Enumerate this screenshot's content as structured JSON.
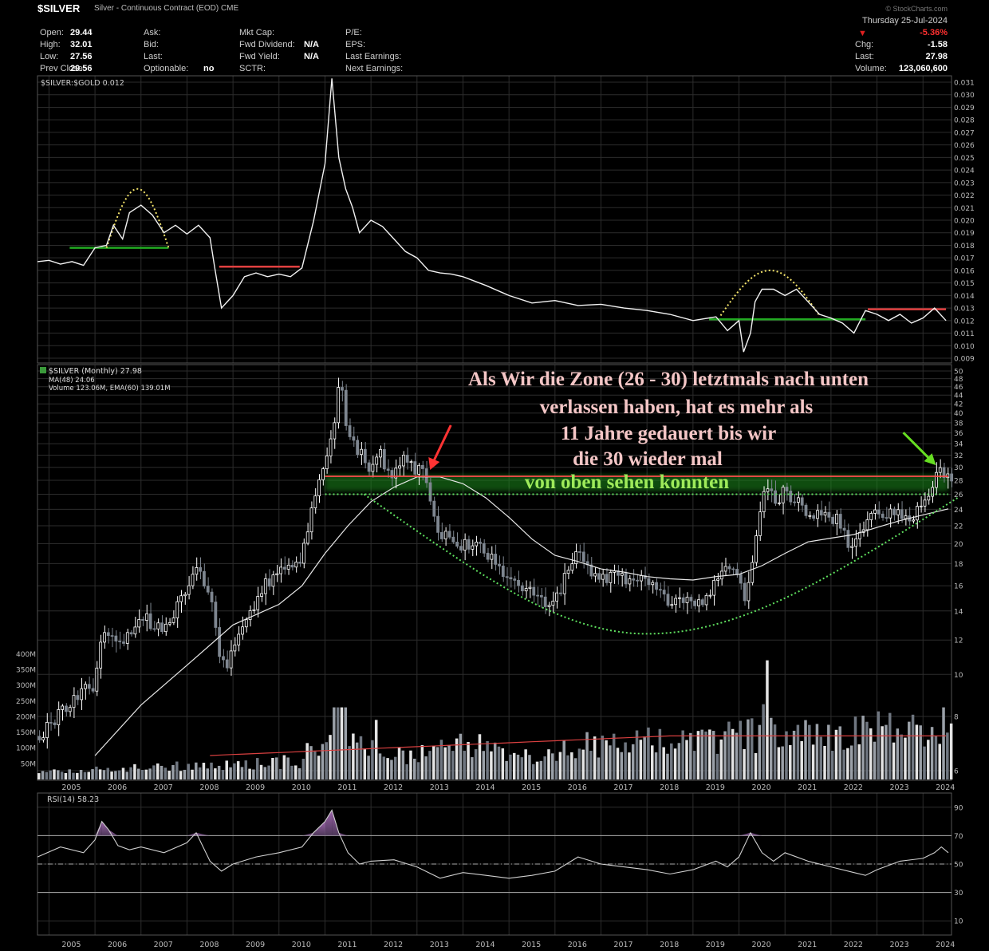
{
  "header": {
    "ticker": "$SILVER",
    "description": "Silver - Continuous Contract (EOD)",
    "exchange": "CME",
    "date": "Thursday  25-Jul-2024",
    "change_pct": "-5.36%",
    "logo": "© StockCharts.com",
    "fields": [
      {
        "label": "Open:",
        "value": "29.44"
      },
      {
        "label": "High:",
        "value": "32.01"
      },
      {
        "label": "Low:",
        "value": "27.56"
      },
      {
        "label": "Prev Close:",
        "value": "29.56"
      },
      {
        "label": "Ask:",
        "value": ""
      },
      {
        "label": "Bid:",
        "value": ""
      },
      {
        "label": "Last:",
        "value": ""
      },
      {
        "label": "Optionable:",
        "value": "no"
      },
      {
        "label": "Mkt Cap:",
        "value": ""
      },
      {
        "label": "Fwd Dividend:",
        "value": "N/A"
      },
      {
        "label": "Fwd Yield:",
        "value": "N/A"
      },
      {
        "label": "SCTR:",
        "value": ""
      },
      {
        "label": "P/E:",
        "value": ""
      },
      {
        "label": "EPS:",
        "value": ""
      },
      {
        "label": "Last Earnings:",
        "value": ""
      },
      {
        "label": "Next Earnings:",
        "value": ""
      },
      {
        "label": "Chg:",
        "value": "-1.58"
      },
      {
        "label": "Last:",
        "value": "27.98"
      },
      {
        "label": "Volume:",
        "value": "123,060,600"
      }
    ]
  },
  "annotation": {
    "lines": [
      "Als Wir die Zone (26 - 30) letztmals nach unten",
      "verlassen haben, hat es mehr als",
      "11 Jahre gedauert bis wir",
      "die 30 wieder mal",
      "von oben sehen konnten"
    ],
    "color_main": "#f4c6c6",
    "color_last": "#9eea5a"
  },
  "chart_data": [
    {
      "type": "line",
      "legend": "$SILVER:$GOLD 0.012",
      "ylim": [
        0.009,
        0.031
      ],
      "yticks": [
        "0.031",
        "0.030",
        "0.029",
        "0.028",
        "0.027",
        "0.026",
        "0.025",
        "0.024",
        "0.023",
        "0.022",
        "0.021",
        "0.020",
        "0.019",
        "0.018",
        "0.017",
        "0.016",
        "0.015",
        "0.014",
        "0.013",
        "0.012",
        "0.011",
        "0.010",
        "0.009"
      ],
      "x": [
        2004.75,
        2005.0,
        2005.25,
        2005.5,
        2005.75,
        2006.0,
        2006.25,
        2006.4,
        2006.6,
        2006.75,
        2007.0,
        2007.25,
        2007.5,
        2007.75,
        2008.0,
        2008.25,
        2008.5,
        2008.6,
        2008.75,
        2009.0,
        2009.25,
        2009.5,
        2009.75,
        2010.0,
        2010.25,
        2010.5,
        2010.75,
        2011.0,
        2011.15,
        2011.3,
        2011.45,
        2011.6,
        2011.75,
        2012.0,
        2012.25,
        2012.5,
        2012.75,
        2013.0,
        2013.25,
        2013.5,
        2013.75,
        2014.0,
        2014.5,
        2015.0,
        2015.5,
        2016.0,
        2016.5,
        2017.0,
        2017.5,
        2018.0,
        2018.5,
        2019.0,
        2019.5,
        2019.75,
        2020.0,
        2020.1,
        2020.25,
        2020.35,
        2020.5,
        2020.75,
        2021.0,
        2021.25,
        2021.5,
        2021.75,
        2022.0,
        2022.25,
        2022.5,
        2022.75,
        2023.0,
        2023.25,
        2023.5,
        2023.75,
        2024.0,
        2024.25,
        2024.5
      ],
      "y": [
        0.0167,
        0.0168,
        0.0165,
        0.0167,
        0.0164,
        0.0178,
        0.018,
        0.0196,
        0.0185,
        0.0206,
        0.0212,
        0.0204,
        0.019,
        0.0196,
        0.0189,
        0.0196,
        0.0186,
        0.0163,
        0.013,
        0.014,
        0.0155,
        0.0158,
        0.0155,
        0.0157,
        0.0155,
        0.0162,
        0.0199,
        0.0245,
        0.0313,
        0.025,
        0.0225,
        0.021,
        0.019,
        0.02,
        0.0195,
        0.0185,
        0.0175,
        0.017,
        0.016,
        0.0158,
        0.0157,
        0.0155,
        0.0148,
        0.014,
        0.0134,
        0.0136,
        0.0132,
        0.0133,
        0.013,
        0.0128,
        0.0125,
        0.012,
        0.0123,
        0.0112,
        0.012,
        0.0095,
        0.011,
        0.0135,
        0.0145,
        0.0145,
        0.014,
        0.0145,
        0.0135,
        0.0125,
        0.0122,
        0.0118,
        0.011,
        0.0128,
        0.0125,
        0.012,
        0.0125,
        0.0118,
        0.0122,
        0.013,
        0.012
      ],
      "hlines": [
        {
          "y": 0.0178,
          "x0": 2005.45,
          "x1": 2007.6,
          "color": "#22aa22"
        },
        {
          "y": 0.0163,
          "x0": 2008.7,
          "x1": 2010.45,
          "color": "#e04040"
        },
        {
          "y": 0.0121,
          "x0": 2019.35,
          "x1": 2022.75,
          "color": "#22aa22"
        },
        {
          "y": 0.0129,
          "x0": 2022.8,
          "x1": 2024.5,
          "color": "#e04040"
        }
      ],
      "arcs": [
        {
          "x0": 2006.25,
          "x1": 2007.6,
          "y_base": 0.0178,
          "y_peak": 0.0225
        },
        {
          "x0": 2019.6,
          "x1": 2021.75,
          "y_base": 0.0124,
          "y_peak": 0.016
        }
      ]
    },
    {
      "type": "bar",
      "legend_price": "$SILVER (Monthly) 27.98",
      "legend_ma": "MA(48) 24.06",
      "legend_volume": "Volume 123.06M, EMA(60) 139.01M",
      "scale": "log",
      "ylim": [
        6,
        50
      ],
      "yticks": [
        50,
        48,
        46,
        44,
        42,
        40,
        38,
        36,
        34,
        32,
        30,
        28,
        26,
        24,
        22,
        20,
        18,
        16,
        14,
        12,
        10,
        8,
        6
      ],
      "volume_ticks": [
        "400M",
        "350M",
        "300M",
        "250M",
        "200M",
        "150M",
        "100M",
        "50M"
      ],
      "x_labels": [
        "2005",
        "2006",
        "2007",
        "2008",
        "2009",
        "2010",
        "2011",
        "2012",
        "2013",
        "2014",
        "2015",
        "2016",
        "2017",
        "2018",
        "2019",
        "2020",
        "2021",
        "2022",
        "2023",
        "2024"
      ],
      "price_x": [
        2004.75,
        2005.0,
        2005.5,
        2006.0,
        2006.25,
        2006.5,
        2007.0,
        2007.5,
        2008.0,
        2008.2,
        2008.5,
        2008.75,
        2008.9,
        2009.25,
        2009.5,
        2009.75,
        2010.0,
        2010.25,
        2010.5,
        2010.75,
        2011.0,
        2011.25,
        2011.35,
        2011.5,
        2011.75,
        2012.0,
        2012.25,
        2012.5,
        2012.75,
        2013.0,
        2013.25,
        2013.5,
        2013.75,
        2014.0,
        2014.5,
        2015.0,
        2015.5,
        2015.9,
        2016.25,
        2016.5,
        2016.75,
        2017.0,
        2017.5,
        2018.0,
        2018.5,
        2018.9,
        2019.25,
        2019.5,
        2019.75,
        2020.0,
        2020.2,
        2020.5,
        2020.6,
        2020.75,
        2021.0,
        2021.25,
        2021.5,
        2021.75,
        2022.0,
        2022.25,
        2022.5,
        2022.75,
        2023.0,
        2023.25,
        2023.5,
        2023.75,
        2024.0,
        2024.25,
        2024.4,
        2024.55
      ],
      "price_y": [
        7.2,
        7.5,
        8.5,
        9.5,
        12.5,
        11.5,
        13.5,
        13.0,
        15.0,
        18.0,
        16.0,
        11.0,
        10.5,
        13.0,
        14.5,
        16.0,
        17.0,
        18.0,
        18.5,
        24.0,
        30.0,
        37.0,
        48.0,
        38.0,
        33.0,
        30.0,
        32.0,
        28.0,
        31.0,
        30.0,
        28.0,
        21.0,
        21.5,
        20.0,
        19.5,
        16.5,
        15.5,
        14.0,
        16.5,
        19.5,
        17.5,
        17.0,
        16.5,
        16.5,
        15.0,
        14.5,
        15.0,
        16.0,
        18.0,
        17.5,
        14.5,
        24.0,
        27.0,
        25.5,
        26.0,
        25.5,
        24.0,
        23.5,
        23.5,
        22.0,
        19.0,
        22.0,
        24.0,
        23.5,
        23.5,
        23.0,
        24.5,
        27.0,
        30.5,
        28.0
      ],
      "ma_x": [
        2006.0,
        2007.0,
        2008.0,
        2009.0,
        2010.0,
        2010.5,
        2011.0,
        2011.5,
        2012.0,
        2012.5,
        2013.0,
        2013.5,
        2014.0,
        2014.5,
        2015.0,
        2015.5,
        2016.0,
        2016.5,
        2017.0,
        2017.5,
        2018.0,
        2018.5,
        2019.0,
        2019.5,
        2020.0,
        2020.5,
        2021.0,
        2021.5,
        2022.0,
        2022.5,
        2023.0,
        2023.5,
        2024.0,
        2024.55
      ],
      "ma_y": [
        6.5,
        8.5,
        10.5,
        13.0,
        14.5,
        16.0,
        19.0,
        22.0,
        25.0,
        27.0,
        28.5,
        28.5,
        27.5,
        25.5,
        23.0,
        20.5,
        18.8,
        18.2,
        17.5,
        17.2,
        16.8,
        16.6,
        16.5,
        16.8,
        17.0,
        17.8,
        19.0,
        20.2,
        20.6,
        21.0,
        21.8,
        22.6,
        23.3,
        24.06
      ],
      "zone_resistance": 28.6,
      "zone_support": 26.0,
      "dish": {
        "x0": 2011.85,
        "xmin": 2018.0,
        "ymin": 12.4,
        "x1": 2024.75,
        "y1": 25.5
      },
      "volume_ema_start": 2008.5,
      "volume_ema_level": 139
    },
    {
      "type": "line",
      "legend": "RSI(14) 58.23",
      "ylim": [
        0,
        100
      ],
      "yticks": [
        90,
        70,
        50,
        30,
        10
      ],
      "x": [
        2004.75,
        2005.25,
        2005.75,
        2006.0,
        2006.15,
        2006.3,
        2006.5,
        2006.75,
        2007.0,
        2007.5,
        2008.0,
        2008.2,
        2008.5,
        2008.75,
        2009.0,
        2009.5,
        2010.0,
        2010.5,
        2010.75,
        2011.0,
        2011.15,
        2011.3,
        2011.5,
        2011.75,
        2012.0,
        2012.5,
        2013.0,
        2013.5,
        2014.0,
        2014.5,
        2015.0,
        2015.5,
        2016.0,
        2016.5,
        2017.0,
        2017.5,
        2018.0,
        2018.5,
        2019.0,
        2019.5,
        2019.75,
        2020.0,
        2020.25,
        2020.5,
        2020.75,
        2021.0,
        2021.5,
        2022.0,
        2022.5,
        2022.75,
        2023.0,
        2023.5,
        2024.0,
        2024.25,
        2024.4,
        2024.55
      ],
      "y": [
        55,
        62,
        58,
        67,
        80,
        74,
        63,
        60,
        62,
        58,
        65,
        72,
        52,
        45,
        50,
        55,
        58,
        62,
        72,
        80,
        88,
        72,
        58,
        50,
        52,
        53,
        48,
        40,
        44,
        42,
        40,
        42,
        45,
        55,
        50,
        48,
        46,
        43,
        46,
        52,
        48,
        55,
        72,
        58,
        52,
        58,
        52,
        48,
        44,
        42,
        46,
        52,
        54,
        58,
        62,
        58
      ],
      "hlines": [
        70,
        50,
        30
      ]
    }
  ]
}
